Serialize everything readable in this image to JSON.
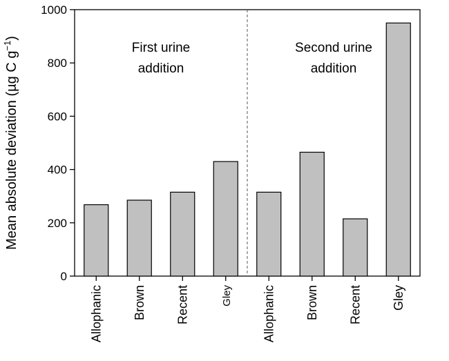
{
  "chart_data": {
    "type": "bar",
    "title": "",
    "xlabel": "",
    "ylabel": "Mean absolute deviation (µg C g",
    "ylabel_sup": "−1",
    "ylabel_close": ")",
    "ylim": [
      0,
      1000
    ],
    "yticks": [
      "0",
      "200",
      "400",
      "600",
      "800",
      "1000"
    ],
    "grid": false,
    "groups": [
      {
        "label_lines": [
          "First urine",
          "addition"
        ],
        "categories": [
          "Allophanic",
          "Brown",
          "Recent",
          "Gley"
        ],
        "values": [
          268,
          285,
          315,
          430
        ]
      },
      {
        "label_lines": [
          "Second urine",
          "addition"
        ],
        "categories": [
          "Allophanic",
          "Brown",
          "Recent",
          "Gley"
        ],
        "values": [
          315,
          465,
          215,
          950
        ]
      }
    ],
    "colors": {
      "bar_fill": "#c0c0c0",
      "bar_stroke": "#000000",
      "divider": "#555555"
    }
  }
}
